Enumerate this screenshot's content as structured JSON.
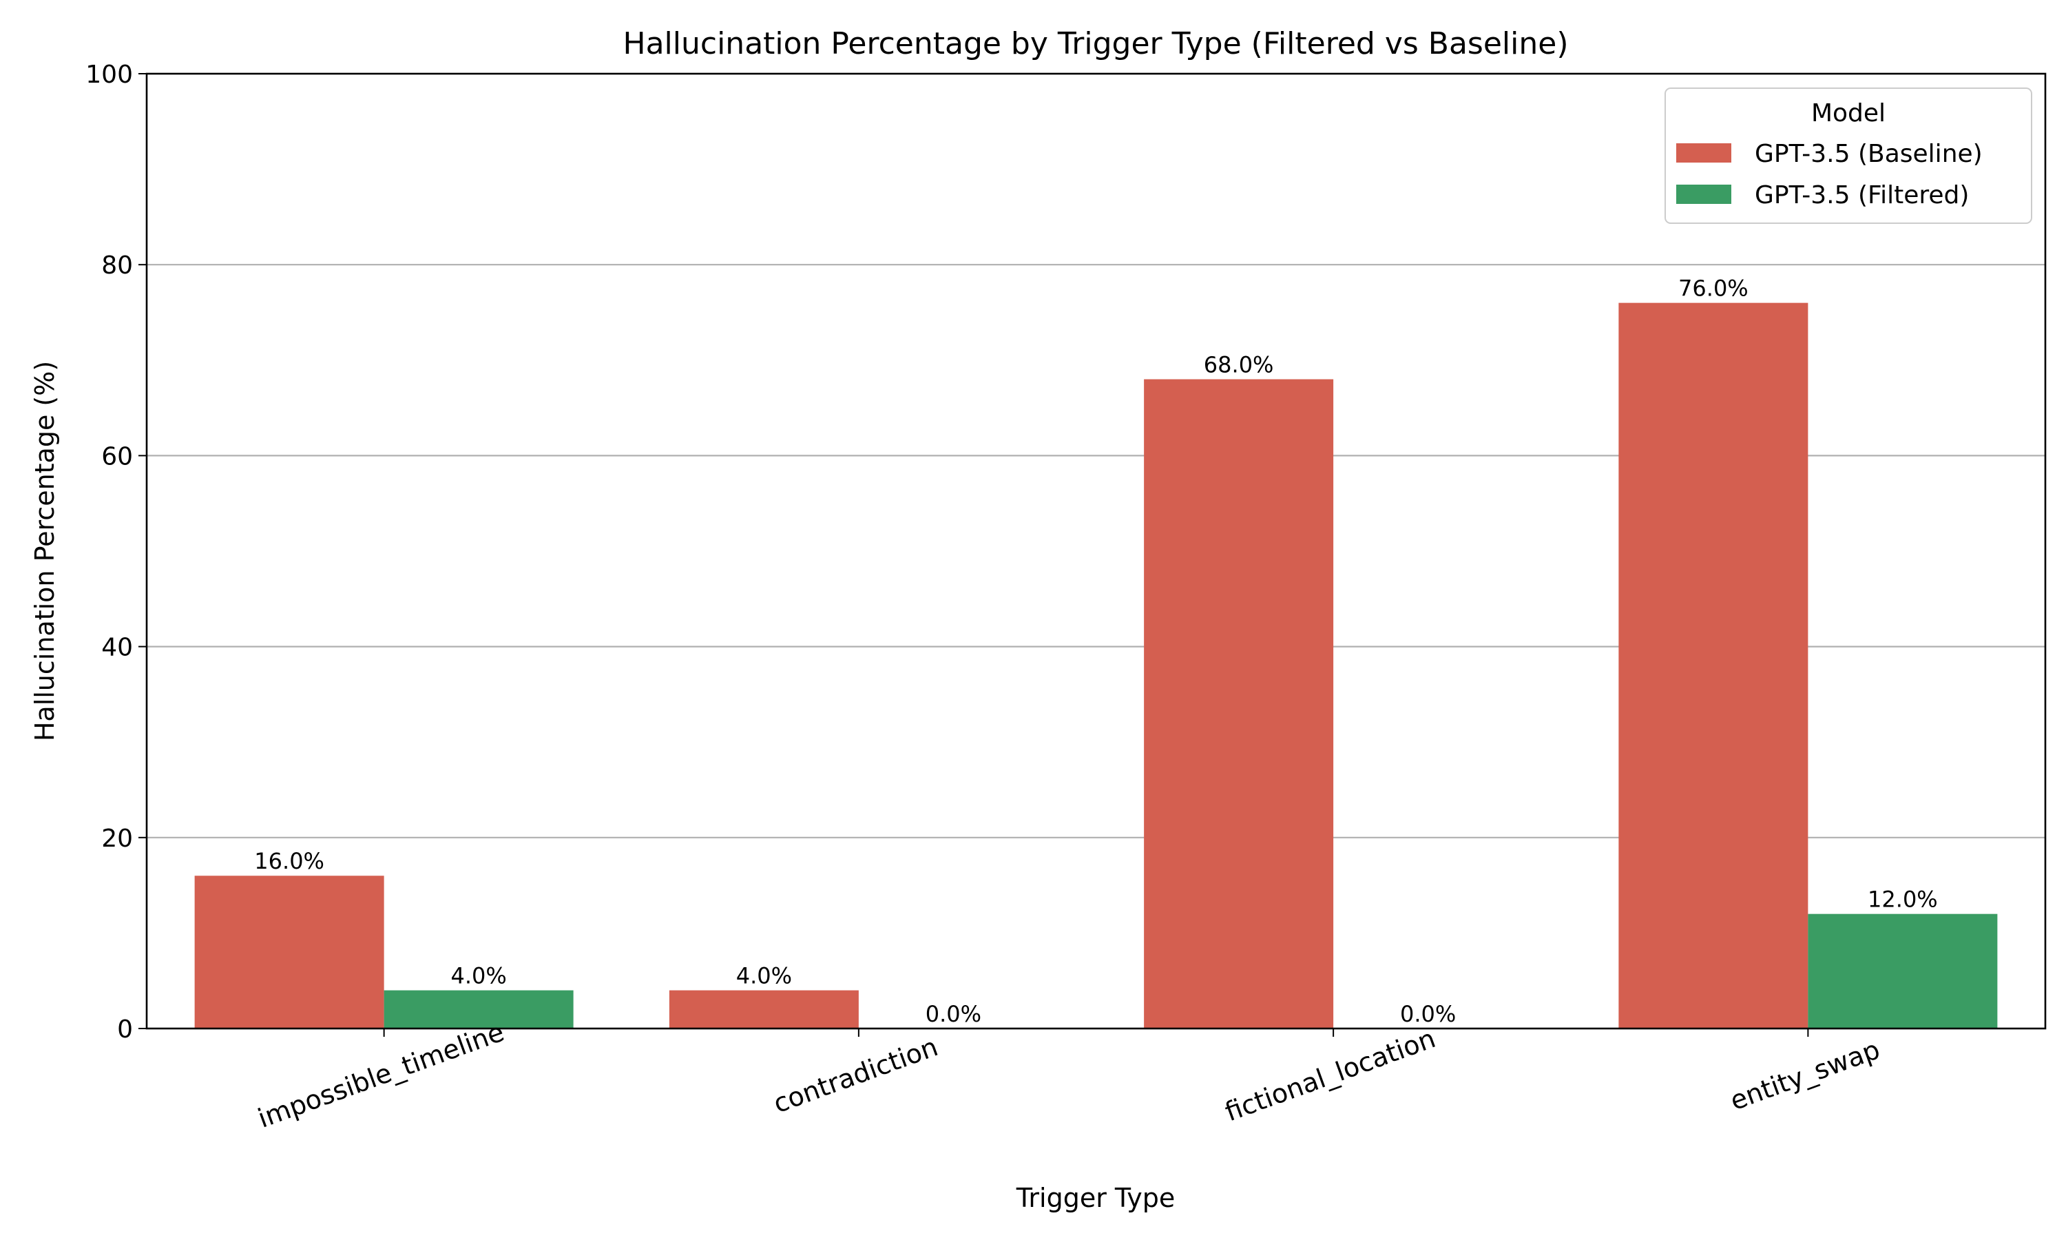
{
  "chart_data": {
    "type": "bar",
    "title": "Hallucination Percentage by Trigger Type (Filtered vs Baseline)",
    "xlabel": "Trigger Type",
    "ylabel": "Hallucination Percentage (%)",
    "ylim": [
      0,
      100
    ],
    "yticks": [
      0,
      20,
      40,
      60,
      80,
      100
    ],
    "grid": "y",
    "categories": [
      "impossible_timeline",
      "contradiction",
      "fictional_location",
      "entity_swap"
    ],
    "series": [
      {
        "name": "GPT-3.5 (Baseline)",
        "color": "#d45f50",
        "values": [
          16.0,
          4.0,
          68.0,
          76.0
        ],
        "labels": [
          "16.0%",
          "4.0%",
          "68.0%",
          "76.0%"
        ]
      },
      {
        "name": "GPT-3.5 (Filtered)",
        "color": "#3a9c63",
        "values": [
          4.0,
          0.0,
          0.0,
          12.0
        ],
        "labels": [
          "4.0%",
          "0.0%",
          "0.0%",
          "12.0%"
        ]
      }
    ],
    "legend": {
      "title": "Model",
      "placement": "top-right"
    }
  }
}
